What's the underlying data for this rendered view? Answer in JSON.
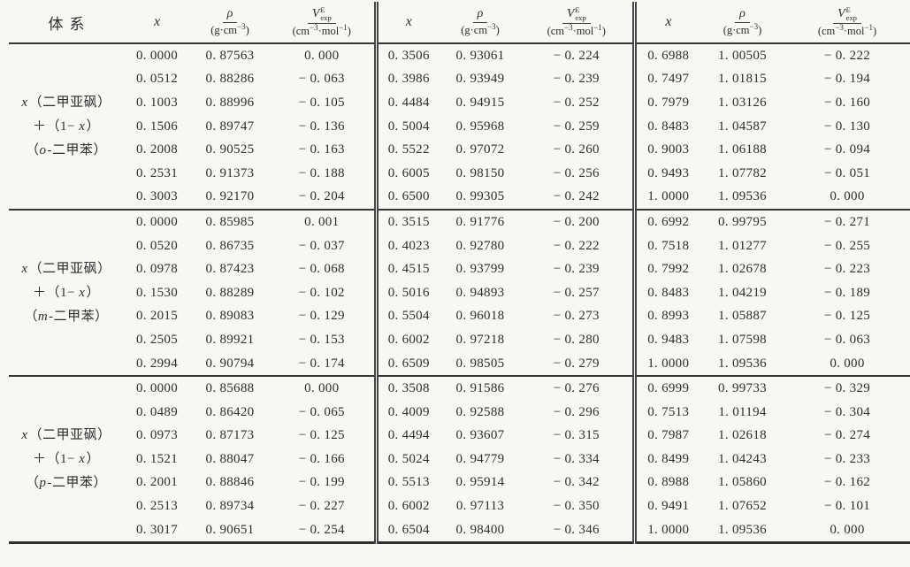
{
  "page": {
    "background": "#f7f7f4",
    "ink_color": "#2d2d2d",
    "rule_color": "#353535"
  },
  "table": {
    "header": {
      "system_label": "体系",
      "x_label": "x",
      "rho_numerator": "ρ",
      "rho_den_prefix": "(g·cm",
      "rho_den_sup": "−3",
      "rho_den_suffix": ")",
      "v_num_base": "V",
      "v_num_sup": "E",
      "v_num_sub": "exp",
      "v_den_prefix": "(cm",
      "v_den_sup1": "−3",
      "v_den_mid": "·mol",
      "v_den_sup2": "−1",
      "v_den_suffix": ")"
    },
    "groups": [
      {
        "label": {
          "l1_i": "x",
          "l1": "（二甲亚砜）",
          "l2a": "＋（1− ",
          "l2_i": "x",
          "l2b": "）",
          "l3a": "（",
          "l3_i": "o",
          "l3b": "-二甲苯）"
        },
        "rows": [
          [
            "0. 0000",
            "0. 87563",
            "0. 000",
            "0. 3506",
            "0. 93061",
            "− 0. 224",
            "0. 6988",
            "1. 00505",
            "− 0. 222"
          ],
          [
            "0. 0512",
            "0. 88286",
            "− 0. 063",
            "0. 3986",
            "0. 93949",
            "− 0. 239",
            "0. 7497",
            "1. 01815",
            "− 0. 194"
          ],
          [
            "0. 1003",
            "0. 88996",
            "− 0. 105",
            "0. 4484",
            "0. 94915",
            "− 0. 252",
            "0. 7979",
            "1. 03126",
            "− 0. 160"
          ],
          [
            "0. 1506",
            "0. 89747",
            "− 0. 136",
            "0. 5004",
            "0. 95968",
            "− 0. 259",
            "0. 8483",
            "1. 04587",
            "− 0. 130"
          ],
          [
            "0. 2008",
            "0. 90525",
            "− 0. 163",
            "0. 5522",
            "0. 97072",
            "− 0. 260",
            "0. 9003",
            "1. 06188",
            "− 0. 094"
          ],
          [
            "0. 2531",
            "0. 91373",
            "− 0. 188",
            "0. 6005",
            "0. 98150",
            "− 0. 256",
            "0. 9493",
            "1. 07782",
            "− 0. 051"
          ],
          [
            "0. 3003",
            "0. 92170",
            "− 0. 204",
            "0. 6500",
            "0. 99305",
            "− 0. 242",
            "1. 0000",
            "1. 09536",
            "0. 000"
          ]
        ]
      },
      {
        "label": {
          "l1_i": "x",
          "l1": "（二甲亚砜）",
          "l2a": "＋（1− ",
          "l2_i": "x",
          "l2b": "）",
          "l3a": "（",
          "l3_i": "m",
          "l3b": "-二甲苯）"
        },
        "rows": [
          [
            "0. 0000",
            "0. 85985",
            "0. 001",
            "0. 3515",
            "0. 91776",
            "− 0. 200",
            "0. 6992",
            "0. 99795",
            "− 0. 271"
          ],
          [
            "0. 0520",
            "0. 86735",
            "− 0. 037",
            "0. 4023",
            "0. 92780",
            "− 0. 222",
            "0. 7518",
            "1. 01277",
            "− 0. 255"
          ],
          [
            "0. 0978",
            "0. 87423",
            "− 0. 068",
            "0. 4515",
            "0. 93799",
            "− 0. 239",
            "0. 7992",
            "1. 02678",
            "− 0. 223"
          ],
          [
            "0. 1530",
            "0. 88289",
            "− 0. 102",
            "0. 5016",
            "0. 94893",
            "− 0. 257",
            "0. 8483",
            "1. 04219",
            "− 0. 189"
          ],
          [
            "0. 2015",
            "0. 89083",
            "− 0. 129",
            "0. 5504",
            "0. 96018",
            "− 0. 273",
            "0. 8993",
            "1. 05887",
            "− 0. 125"
          ],
          [
            "0. 2505",
            "0. 89921",
            "− 0. 153",
            "0. 6002",
            "0. 97218",
            "− 0. 280",
            "0. 9483",
            "1. 07598",
            "− 0. 063"
          ],
          [
            "0. 2994",
            "0. 90794",
            "− 0. 174",
            "0. 6509",
            "0. 98505",
            "− 0. 279",
            "1. 0000",
            "1. 09536",
            "0. 000"
          ]
        ]
      },
      {
        "label": {
          "l1_i": "x",
          "l1": "（二甲亚砜）",
          "l2a": "＋（1− ",
          "l2_i": "x",
          "l2b": "）",
          "l3a": "（",
          "l3_i": "p",
          "l3b": "-二甲苯）"
        },
        "rows": [
          [
            "0. 0000",
            "0. 85688",
            "0. 000",
            "0. 3508",
            "0. 91586",
            "− 0. 276",
            "0. 6999",
            "0. 99733",
            "− 0. 329"
          ],
          [
            "0. 0489",
            "0. 86420",
            "− 0. 065",
            "0. 4009",
            "0. 92588",
            "− 0. 296",
            "0. 7513",
            "1. 01194",
            "− 0. 304"
          ],
          [
            "0. 0973",
            "0. 87173",
            "− 0. 125",
            "0. 4494",
            "0. 93607",
            "− 0. 315",
            "0. 7987",
            "1. 02618",
            "− 0. 274"
          ],
          [
            "0. 1521",
            "0. 88047",
            "− 0. 166",
            "0. 5024",
            "0. 94779",
            "− 0. 334",
            "0. 8499",
            "1. 04243",
            "− 0. 233"
          ],
          [
            "0. 2001",
            "0. 88846",
            "− 0. 199",
            "0. 5513",
            "0. 95914",
            "− 0. 342",
            "0. 8988",
            "1. 05860",
            "− 0. 162"
          ],
          [
            "0. 2513",
            "0. 89734",
            "− 0. 227",
            "0. 6002",
            "0. 97113",
            "− 0. 350",
            "0. 9491",
            "1. 07652",
            "− 0. 101"
          ],
          [
            "0. 3017",
            "0. 90651",
            "− 0. 254",
            "0. 6504",
            "0. 98400",
            "− 0. 346",
            "1. 0000",
            "1. 09536",
            "0. 000"
          ]
        ]
      }
    ]
  }
}
